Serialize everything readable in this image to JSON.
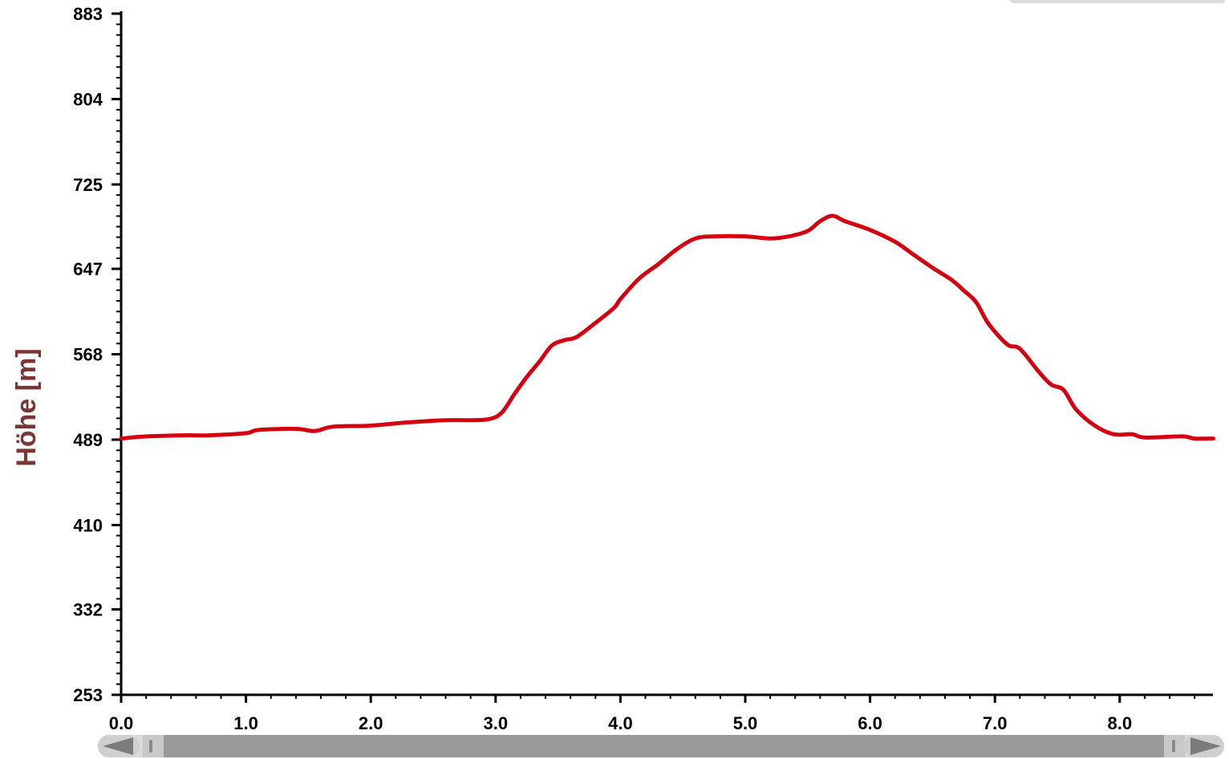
{
  "chart_data": {
    "type": "line",
    "title": "",
    "xlabel": "",
    "ylabel": "Höhe [m]",
    "xlim": [
      0,
      8.75
    ],
    "ylim": [
      253,
      883
    ],
    "y_ticks": [
      {
        "value": 253,
        "label": "253"
      },
      {
        "value": 332,
        "label": "332"
      },
      {
        "value": 410,
        "label": "410"
      },
      {
        "value": 489,
        "label": "489"
      },
      {
        "value": 568,
        "label": "568"
      },
      {
        "value": 647,
        "label": "647"
      },
      {
        "value": 725,
        "label": "725"
      },
      {
        "value": 804,
        "label": "804"
      },
      {
        "value": 883,
        "label": "883"
      }
    ],
    "x_ticks": [
      {
        "value": 0,
        "label": "0.0"
      },
      {
        "value": 1,
        "label": "1.0"
      },
      {
        "value": 2,
        "label": "2.0"
      },
      {
        "value": 3,
        "label": "3.0"
      },
      {
        "value": 4,
        "label": "4.0"
      },
      {
        "value": 5,
        "label": "5.0"
      },
      {
        "value": 6,
        "label": "6.0"
      },
      {
        "value": 7,
        "label": "7.0"
      },
      {
        "value": 8,
        "label": "8.0"
      }
    ],
    "grid": false,
    "series": [
      {
        "color": "#d40010",
        "points": [
          [
            0.0,
            490
          ],
          [
            0.2,
            492
          ],
          [
            0.5,
            493
          ],
          [
            0.7,
            493
          ],
          [
            1.0,
            495
          ],
          [
            1.1,
            498
          ],
          [
            1.4,
            499
          ],
          [
            1.55,
            497
          ],
          [
            1.7,
            501
          ],
          [
            2.0,
            502
          ],
          [
            2.3,
            505
          ],
          [
            2.6,
            507
          ],
          [
            2.8,
            507
          ],
          [
            2.95,
            508
          ],
          [
            3.05,
            514
          ],
          [
            3.15,
            531
          ],
          [
            3.25,
            547
          ],
          [
            3.35,
            561
          ],
          [
            3.45,
            576
          ],
          [
            3.55,
            581
          ],
          [
            3.65,
            584
          ],
          [
            3.8,
            597
          ],
          [
            3.95,
            611
          ],
          [
            4.0,
            619
          ],
          [
            4.15,
            638
          ],
          [
            4.3,
            651
          ],
          [
            4.45,
            665
          ],
          [
            4.6,
            675
          ],
          [
            4.75,
            677
          ],
          [
            5.0,
            677
          ],
          [
            5.2,
            675
          ],
          [
            5.35,
            677
          ],
          [
            5.5,
            682
          ],
          [
            5.6,
            691
          ],
          [
            5.7,
            696
          ],
          [
            5.8,
            691
          ],
          [
            6.0,
            683
          ],
          [
            6.2,
            672
          ],
          [
            6.35,
            660
          ],
          [
            6.5,
            648
          ],
          [
            6.65,
            637
          ],
          [
            6.75,
            627
          ],
          [
            6.85,
            616
          ],
          [
            6.95,
            596
          ],
          [
            7.1,
            577
          ],
          [
            7.2,
            573
          ],
          [
            7.35,
            552
          ],
          [
            7.45,
            540
          ],
          [
            7.55,
            535
          ],
          [
            7.65,
            517
          ],
          [
            7.8,
            502
          ],
          [
            7.95,
            494
          ],
          [
            8.1,
            494
          ],
          [
            8.2,
            491
          ],
          [
            8.5,
            492
          ],
          [
            8.6,
            490
          ],
          [
            8.75,
            490
          ]
        ]
      }
    ],
    "scrollbar": {
      "left_arrow_icon": "triangle-left-icon",
      "right_arrow_icon": "triangle-right-icon",
      "thumb_start": 0,
      "thumb_end": 1
    }
  }
}
